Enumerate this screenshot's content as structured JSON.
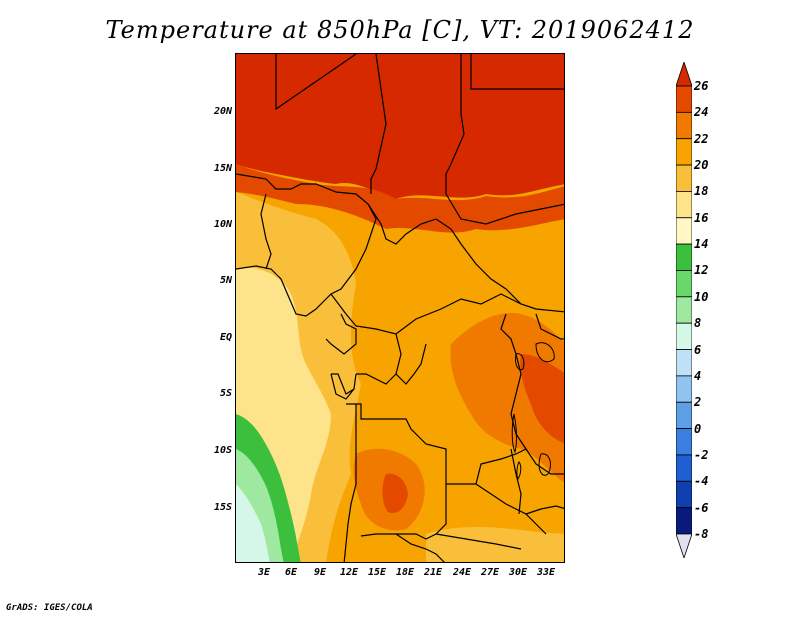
{
  "title": "Temperature at 850hPa [C], VT: 2019062412",
  "credit": "GrADS: IGES/COLA",
  "map": {
    "lat_labels": [
      "20N",
      "15N",
      "10N",
      "5N",
      "EQ",
      "5S",
      "10S",
      "15S"
    ],
    "lon_labels": [
      "3E",
      "6E",
      "9E",
      "12E",
      "15E",
      "18E",
      "21E",
      "24E",
      "27E",
      "30E",
      "33E"
    ]
  },
  "colorbar": {
    "labels": [
      "26",
      "24",
      "22",
      "20",
      "18",
      "16",
      "14",
      "12",
      "10",
      "8",
      "6",
      "4",
      "2",
      "0",
      "-2",
      "-4",
      "-6",
      "-8"
    ],
    "colors": [
      "#d62900",
      "#e34a00",
      "#f07a00",
      "#f7a300",
      "#f9bf3a",
      "#fde48a",
      "#fff7c5",
      "#3cbf3c",
      "#6ad76a",
      "#9fe89f",
      "#d4f7e8",
      "#bfe0f7",
      "#8fc3f0",
      "#5e9fe6",
      "#3a7ee0",
      "#1f5fd1",
      "#1040b0",
      "#0a1a7a",
      "#e0e0f0"
    ]
  }
}
